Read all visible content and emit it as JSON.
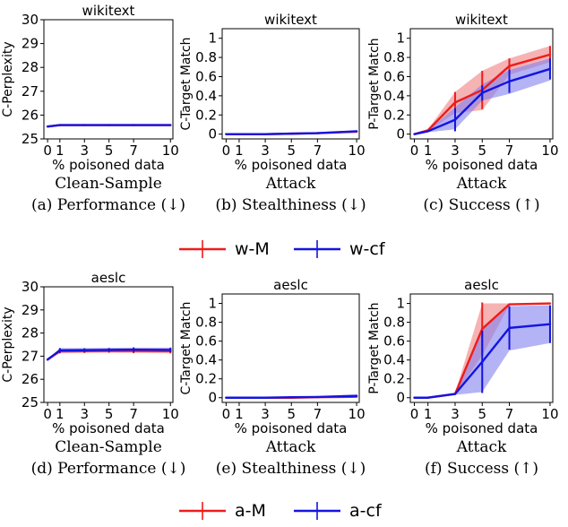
{
  "colors": {
    "red": "#ee1c1c",
    "blue": "#1414e0",
    "red_fill": "#f08080",
    "blue_fill": "#8080f0"
  },
  "legends": [
    {
      "entries": [
        {
          "label": "w-M",
          "color": "#ee1c1c"
        },
        {
          "label": "w-cf",
          "color": "#1414e0"
        }
      ]
    },
    {
      "entries": [
        {
          "label": "a-M",
          "color": "#ee1c1c"
        },
        {
          "label": "a-cf",
          "color": "#1414e0"
        }
      ]
    }
  ],
  "chart_data": [
    {
      "type": "line",
      "title": "wikitext",
      "xlabel": "% poisoned data",
      "ylabel": "C-Perplexity",
      "xticks": [
        0,
        1,
        3,
        5,
        7,
        10
      ],
      "xlim": [
        -0.3,
        10.2
      ],
      "yticks": [
        25,
        26,
        27,
        28,
        29,
        30
      ],
      "ylim": [
        25,
        30
      ],
      "caption": [
        "Clean-Sample",
        "(a) Performance (↓)"
      ],
      "x": [
        0,
        1,
        3,
        5,
        7,
        10
      ],
      "series": [
        {
          "color": "#ee1c1c",
          "values": [
            25.52,
            25.58,
            25.58,
            25.58,
            25.58,
            25.58
          ],
          "band_low": [
            25.52,
            25.57,
            25.57,
            25.57,
            25.57,
            25.57
          ],
          "band_high": [
            25.52,
            25.59,
            25.59,
            25.59,
            25.59,
            25.59
          ],
          "err": [
            0,
            0,
            0,
            0,
            0,
            0
          ]
        },
        {
          "color": "#1414e0",
          "values": [
            25.52,
            25.58,
            25.58,
            25.58,
            25.58,
            25.58
          ],
          "band_low": [
            25.52,
            25.57,
            25.57,
            25.57,
            25.57,
            25.57
          ],
          "band_high": [
            25.52,
            25.59,
            25.59,
            25.59,
            25.59,
            25.59
          ],
          "err": [
            0,
            0,
            0,
            0,
            0,
            0
          ]
        }
      ]
    },
    {
      "type": "line",
      "title": "wikitext",
      "xlabel": "% poisoned data",
      "ylabel": "C-Target Match",
      "xticks": [
        0,
        1,
        3,
        5,
        7,
        10
      ],
      "xlim": [
        -0.3,
        10.2
      ],
      "yticks": [
        0.0,
        0.2,
        0.4,
        0.6,
        0.8,
        1.0
      ],
      "ylim": [
        -0.05,
        1.1
      ],
      "caption": [
        "Attack",
        "(b) Stealthiness (↓)"
      ],
      "x": [
        0,
        1,
        3,
        5,
        7,
        10
      ],
      "series": [
        {
          "color": "#ee1c1c",
          "values": [
            0.0,
            0.0,
            0.0,
            0.005,
            0.01,
            0.025
          ],
          "band_low": [
            0.0,
            0.0,
            0.0,
            0.0,
            0.005,
            0.015
          ],
          "band_high": [
            0.0,
            0.0,
            0.005,
            0.01,
            0.015,
            0.035
          ],
          "err": [
            0,
            0,
            0,
            0,
            0,
            0
          ]
        },
        {
          "color": "#1414e0",
          "values": [
            0.0,
            0.0,
            0.0,
            0.005,
            0.01,
            0.03
          ],
          "band_low": [
            0.0,
            0.0,
            0.0,
            0.0,
            0.005,
            0.02
          ],
          "band_high": [
            0.0,
            0.0,
            0.005,
            0.01,
            0.015,
            0.04
          ],
          "err": [
            0,
            0,
            0,
            0,
            0,
            0
          ]
        }
      ]
    },
    {
      "type": "line",
      "title": "wikitext",
      "xlabel": "% poisoned data",
      "ylabel": "P-Target Match",
      "xticks": [
        0,
        1,
        3,
        5,
        7,
        10
      ],
      "xlim": [
        -0.3,
        10.2
      ],
      "yticks": [
        0.0,
        0.2,
        0.4,
        0.6,
        0.8,
        1.0
      ],
      "ylim": [
        -0.05,
        1.1
      ],
      "caption": [
        "Attack",
        "(c) Success (↑)"
      ],
      "x": [
        0,
        1,
        3,
        5,
        7,
        10
      ],
      "series": [
        {
          "color": "#ee1c1c",
          "values": [
            0.0,
            0.04,
            0.33,
            0.46,
            0.71,
            0.83
          ],
          "band_low": [
            0.0,
            0.03,
            0.22,
            0.25,
            0.62,
            0.75
          ],
          "band_high": [
            0.0,
            0.05,
            0.44,
            0.66,
            0.79,
            0.92
          ],
          "err": [
            0,
            0,
            0.11,
            0.2,
            0.08,
            0.09
          ]
        },
        {
          "color": "#1414e0",
          "values": [
            0.0,
            0.03,
            0.15,
            0.43,
            0.55,
            0.68
          ],
          "band_low": [
            0.0,
            0.02,
            0.05,
            0.35,
            0.42,
            0.56
          ],
          "band_high": [
            0.0,
            0.04,
            0.28,
            0.52,
            0.67,
            0.79
          ],
          "err": [
            0,
            0,
            0.12,
            0.08,
            0.12,
            0.11
          ]
        }
      ]
    },
    {
      "type": "line",
      "title": "aeslc",
      "xlabel": "% poisoned data",
      "ylabel": "C-Perplexity",
      "xticks": [
        0,
        1,
        3,
        5,
        7,
        10
      ],
      "xlim": [
        -0.3,
        10.2
      ],
      "yticks": [
        25,
        26,
        27,
        28,
        29,
        30
      ],
      "ylim": [
        25,
        30
      ],
      "caption": [
        "Clean-Sample",
        "(d) Performance (↓)"
      ],
      "x": [
        0,
        1,
        3,
        5,
        7,
        10
      ],
      "series": [
        {
          "color": "#ee1c1c",
          "values": [
            26.85,
            27.22,
            27.22,
            27.23,
            27.23,
            27.22
          ],
          "band_low": [
            26.85,
            27.12,
            27.14,
            27.15,
            27.14,
            27.12
          ],
          "band_high": [
            26.85,
            27.32,
            27.32,
            27.33,
            27.34,
            27.33
          ],
          "err": [
            0,
            0.1,
            0.08,
            0.08,
            0.1,
            0.1
          ]
        },
        {
          "color": "#1414e0",
          "values": [
            26.85,
            27.25,
            27.26,
            27.27,
            27.28,
            27.27
          ],
          "band_low": [
            26.85,
            27.15,
            27.17,
            27.18,
            27.18,
            27.17
          ],
          "band_high": [
            26.85,
            27.35,
            27.35,
            27.36,
            27.37,
            27.37
          ],
          "err": [
            0,
            0.1,
            0.08,
            0.08,
            0.1,
            0.1
          ]
        }
      ]
    },
    {
      "type": "line",
      "title": "aeslc",
      "xlabel": "% poisoned data",
      "ylabel": "C-Target Match",
      "xticks": [
        0,
        1,
        3,
        5,
        7,
        10
      ],
      "xlim": [
        -0.3,
        10.2
      ],
      "yticks": [
        0.0,
        0.2,
        0.4,
        0.6,
        0.8,
        1.0
      ],
      "ylim": [
        -0.05,
        1.1
      ],
      "caption": [
        "Attack",
        "(e) Stealthiness (↓)"
      ],
      "x": [
        0,
        1,
        3,
        5,
        7,
        10
      ],
      "series": [
        {
          "color": "#ee1c1c",
          "values": [
            0.0,
            0.0,
            0.0,
            0.0,
            0.005,
            0.01
          ],
          "band_low": [
            0.0,
            0.0,
            0.0,
            0.0,
            0.0,
            0.005
          ],
          "band_high": [
            0.0,
            0.0,
            0.005,
            0.005,
            0.01,
            0.015
          ],
          "err": [
            0,
            0,
            0,
            0,
            0,
            0
          ]
        },
        {
          "color": "#1414e0",
          "values": [
            0.0,
            0.0,
            0.0,
            0.005,
            0.008,
            0.02
          ],
          "band_low": [
            0.0,
            0.0,
            0.0,
            0.0,
            0.004,
            0.012
          ],
          "band_high": [
            0.0,
            0.0,
            0.005,
            0.01,
            0.012,
            0.028
          ],
          "err": [
            0,
            0,
            0,
            0,
            0,
            0
          ]
        }
      ]
    },
    {
      "type": "line",
      "title": "aeslc",
      "xlabel": "% poisoned data",
      "ylabel": "P-Target Match",
      "xticks": [
        0,
        1,
        3,
        5,
        7,
        10
      ],
      "xlim": [
        -0.3,
        10.2
      ],
      "yticks": [
        0.0,
        0.2,
        0.4,
        0.6,
        0.8,
        1.0
      ],
      "ylim": [
        -0.05,
        1.1
      ],
      "caption": [
        "Attack",
        "(f) Success (↑)"
      ],
      "x": [
        0,
        1,
        3,
        5,
        7,
        10
      ],
      "series": [
        {
          "color": "#ee1c1c",
          "values": [
            0.0,
            0.0,
            0.04,
            0.73,
            0.99,
            1.0
          ],
          "band_low": [
            0.0,
            0.0,
            0.03,
            0.45,
            0.98,
            1.0
          ],
          "band_high": [
            0.0,
            0.0,
            0.05,
            1.0,
            1.0,
            1.0
          ],
          "err": [
            0,
            0,
            0,
            0.28,
            0.01,
            0
          ]
        },
        {
          "color": "#1414e0",
          "values": [
            0.0,
            0.0,
            0.04,
            0.38,
            0.74,
            0.78
          ],
          "band_low": [
            0.0,
            0.0,
            0.03,
            0.06,
            0.5,
            0.58
          ],
          "band_high": [
            0.0,
            0.0,
            0.05,
            0.72,
            0.97,
            0.98
          ],
          "err": [
            0,
            0,
            0,
            0.33,
            0.23,
            0.2
          ]
        }
      ]
    }
  ]
}
